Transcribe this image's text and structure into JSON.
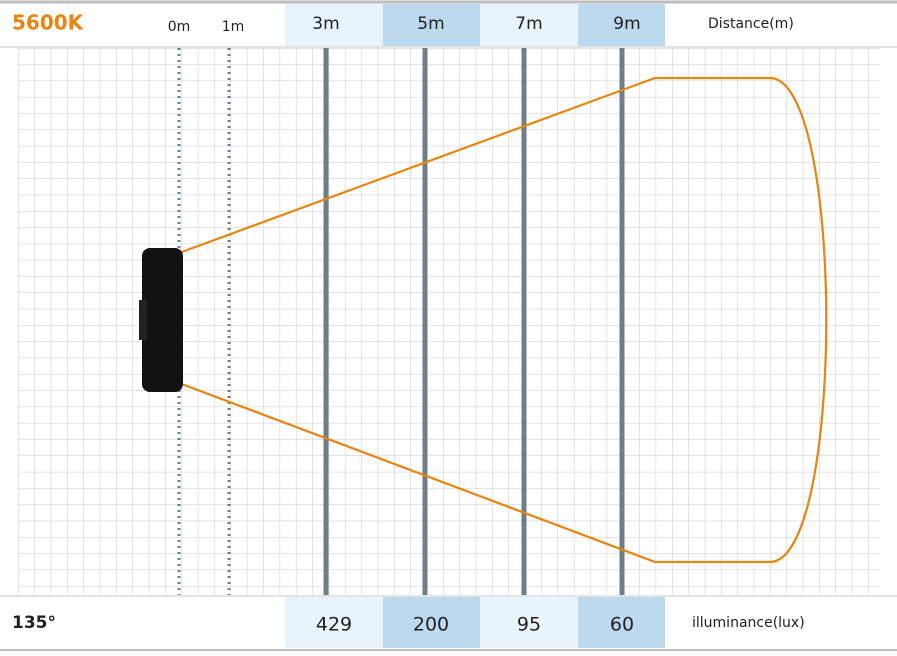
{
  "header": {
    "color_temperature": "5600K",
    "distances": [
      "0m",
      "1m",
      "3m",
      "5m",
      "7m",
      "9m"
    ],
    "axis_label": "Distance(m)"
  },
  "footer": {
    "beam_angle": "135°",
    "illuminance": [
      429,
      200,
      95,
      60
    ],
    "axis_label": "illuminance(lux)"
  }
}
